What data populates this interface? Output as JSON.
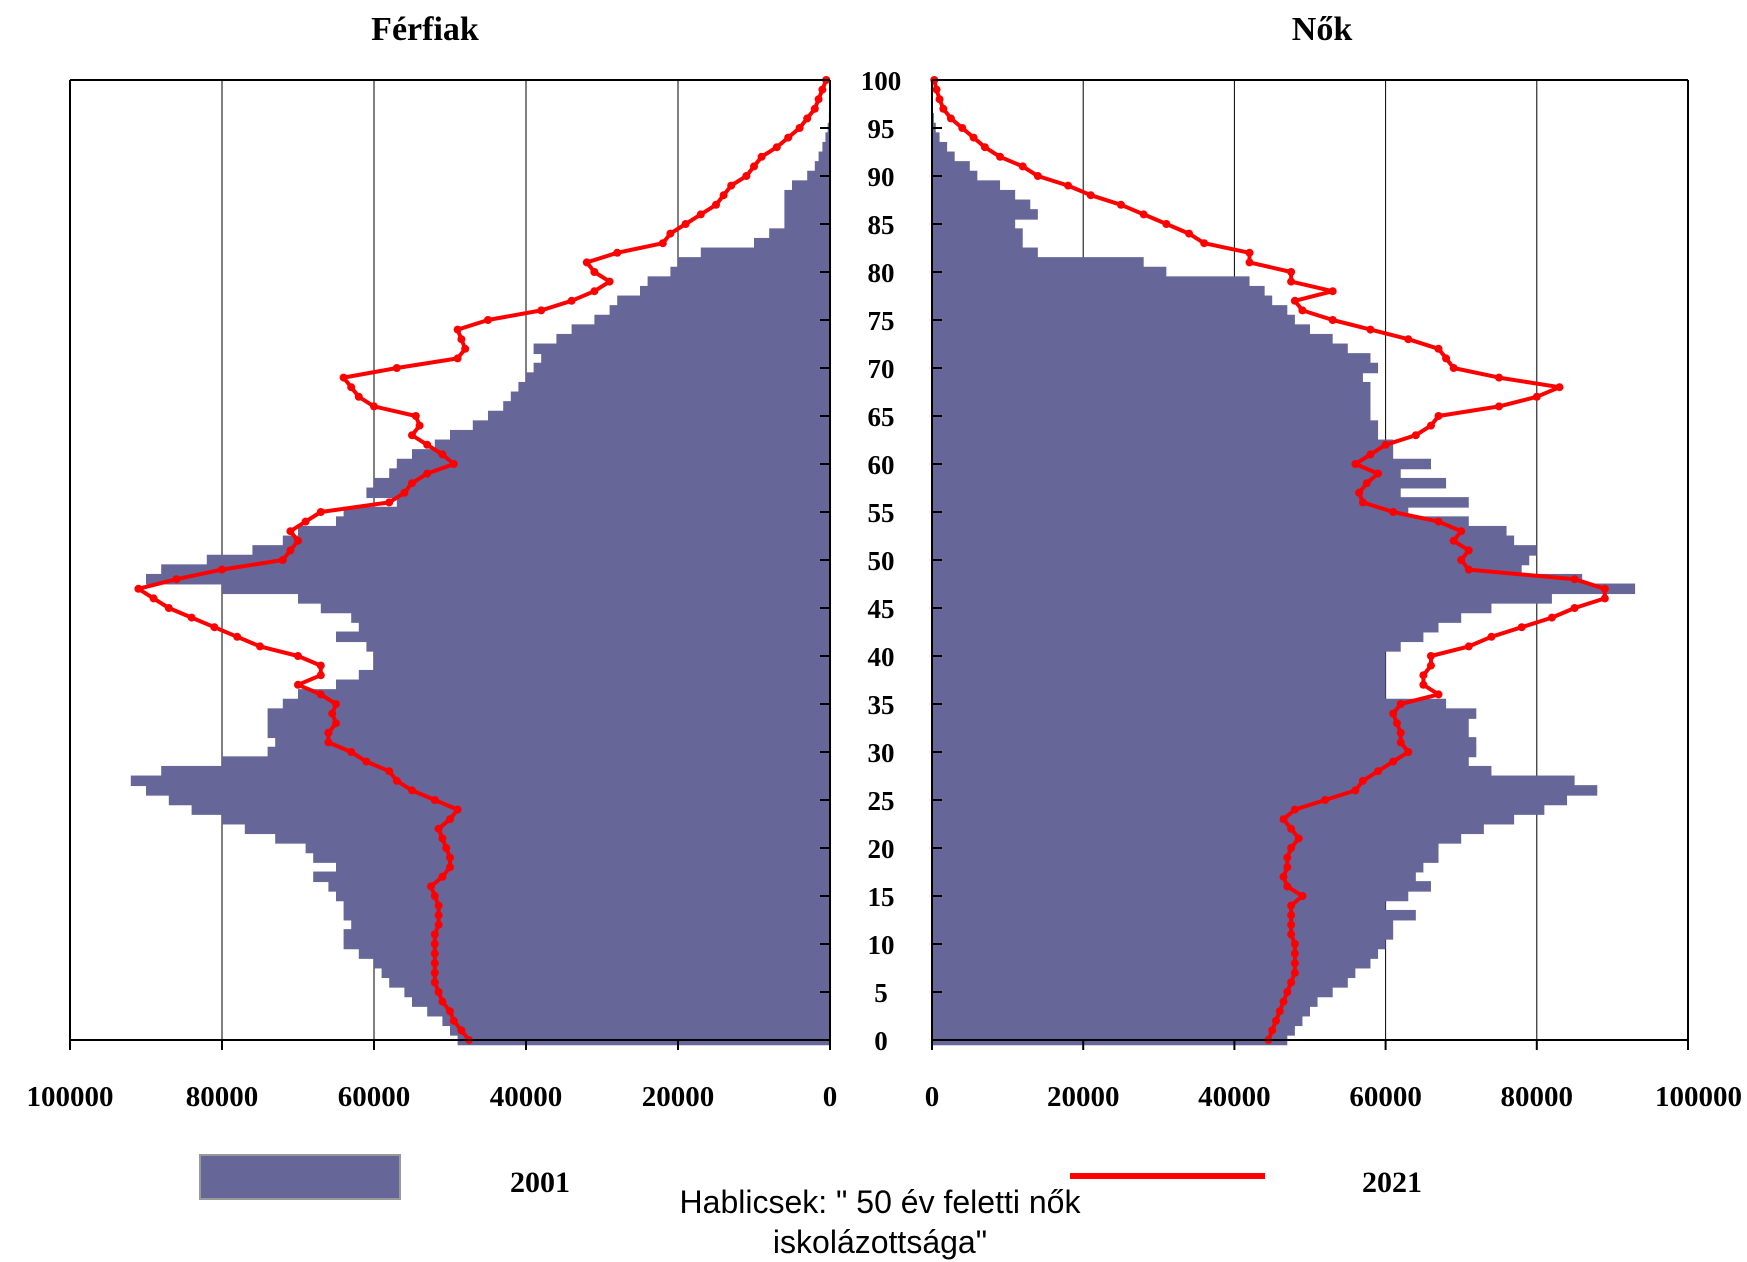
{
  "chart_data": {
    "type": "bar",
    "description_type": "population-pyramid",
    "panels": [
      {
        "title": "Férfiak",
        "side": "left",
        "xlim": [
          100000,
          0
        ]
      },
      {
        "title": "Nők",
        "side": "right",
        "xlim": [
          0,
          100000
        ]
      }
    ],
    "x_ticks_left": [
      "100000",
      "80000",
      "60000",
      "40000",
      "20000",
      "0"
    ],
    "x_ticks_right": [
      "0",
      "20000",
      "40000",
      "60000",
      "80000",
      "100000"
    ],
    "y_ticks": [
      "0",
      "5",
      "10",
      "15",
      "20",
      "25",
      "30",
      "35",
      "40",
      "45",
      "50",
      "55",
      "60",
      "65",
      "70",
      "75",
      "80",
      "85",
      "90",
      "95",
      "100"
    ],
    "ylim": [
      0,
      100
    ],
    "grid": true,
    "legend": {
      "placement": "bottom",
      "entries": [
        {
          "label": "2001",
          "style": "bar",
          "color": "#666699"
        },
        {
          "label": "2021",
          "style": "line",
          "color": "#ff0000"
        }
      ]
    },
    "source_note": "Hablicsek: \" 50 év feletti nők iskolázottsága\"",
    "ages": [
      0,
      1,
      2,
      3,
      4,
      5,
      6,
      7,
      8,
      9,
      10,
      11,
      12,
      13,
      14,
      15,
      16,
      17,
      18,
      19,
      20,
      21,
      22,
      23,
      24,
      25,
      26,
      27,
      28,
      29,
      30,
      31,
      32,
      33,
      34,
      35,
      36,
      37,
      38,
      39,
      40,
      41,
      42,
      43,
      44,
      45,
      46,
      47,
      48,
      49,
      50,
      51,
      52,
      53,
      54,
      55,
      56,
      57,
      58,
      59,
      60,
      61,
      62,
      63,
      64,
      65,
      66,
      67,
      68,
      69,
      70,
      71,
      72,
      73,
      74,
      75,
      76,
      77,
      78,
      79,
      80,
      81,
      82,
      83,
      84,
      85,
      86,
      87,
      88,
      89,
      90,
      91,
      92,
      93,
      94,
      95,
      96,
      97,
      98,
      99,
      100
    ],
    "series": [
      {
        "name": "2001",
        "sex": "Férfiak",
        "kind": "bar",
        "color": "#666699",
        "values": [
          49000,
          50000,
          51000,
          53000,
          55000,
          56000,
          58000,
          59000,
          60000,
          62000,
          64000,
          64000,
          63000,
          64000,
          64000,
          65000,
          66000,
          68000,
          65000,
          68000,
          69000,
          73000,
          77000,
          80000,
          84000,
          87000,
          90000,
          92000,
          88000,
          80000,
          74000,
          73000,
          74000,
          74000,
          74000,
          72000,
          70000,
          65000,
          62000,
          60000,
          60000,
          61000,
          65000,
          62000,
          63000,
          67000,
          70000,
          80000,
          90000,
          88000,
          82000,
          76000,
          72000,
          70000,
          65000,
          64000,
          57000,
          61000,
          60000,
          58000,
          57000,
          55000,
          52000,
          50000,
          47000,
          45000,
          43000,
          42000,
          41000,
          40000,
          39000,
          38000,
          39000,
          36000,
          34000,
          31000,
          29000,
          28000,
          25000,
          24000,
          21000,
          20000,
          17000,
          10000,
          8000,
          6000,
          6000,
          6000,
          6000,
          5000,
          3000,
          2000,
          1500,
          1000,
          600,
          300,
          150,
          80,
          40,
          20,
          10
        ]
      },
      {
        "name": "2001",
        "sex": "Nők",
        "kind": "bar",
        "color": "#666699",
        "values": [
          47000,
          48000,
          49000,
          50000,
          51000,
          53000,
          55000,
          56000,
          58000,
          59000,
          60000,
          61000,
          61000,
          64000,
          60000,
          63000,
          66000,
          64000,
          65000,
          67000,
          67000,
          70000,
          73000,
          77000,
          81000,
          84000,
          88000,
          85000,
          74000,
          71000,
          72000,
          72000,
          71000,
          71000,
          72000,
          68000,
          60000,
          60000,
          60000,
          60000,
          60000,
          62000,
          65000,
          67000,
          70000,
          74000,
          82000,
          93000,
          86000,
          78000,
          79000,
          80000,
          77000,
          76000,
          71000,
          63000,
          71000,
          62000,
          68000,
          62000,
          66000,
          61000,
          61000,
          59000,
          59000,
          58000,
          58000,
          58000,
          58000,
          57000,
          59000,
          58000,
          55000,
          53000,
          50000,
          48000,
          47000,
          45000,
          44000,
          42000,
          31000,
          28000,
          14000,
          12000,
          12000,
          11000,
          14000,
          13000,
          11000,
          9000,
          6000,
          5000,
          3000,
          2000,
          1000,
          500,
          250,
          120,
          60,
          30,
          10
        ]
      },
      {
        "name": "2021",
        "sex": "Férfiak",
        "kind": "line",
        "color": "#ff0000",
        "values": [
          47500,
          48500,
          49500,
          50000,
          51000,
          51500,
          52000,
          52000,
          52000,
          52000,
          52000,
          52000,
          51500,
          51500,
          51500,
          52000,
          52500,
          51000,
          50000,
          50000,
          50500,
          51000,
          51500,
          50000,
          49000,
          52000,
          55000,
          57000,
          58000,
          61000,
          63000,
          66000,
          66000,
          65000,
          65500,
          65000,
          67000,
          70000,
          67000,
          67000,
          70000,
          75000,
          78000,
          81000,
          84000,
          87000,
          89000,
          91000,
          86000,
          80000,
          72000,
          71000,
          70000,
          71000,
          69000,
          67000,
          58000,
          56000,
          55000,
          53000,
          49500,
          51000,
          53000,
          55000,
          54000,
          54500,
          60000,
          62000,
          63000,
          64000,
          57000,
          49000,
          48000,
          48500,
          49000,
          45000,
          38000,
          34000,
          31000,
          29000,
          31000,
          32000,
          28000,
          22000,
          21000,
          19000,
          17000,
          15000,
          14000,
          13000,
          11000,
          10000,
          9000,
          7000,
          5500,
          4000,
          3000,
          2000,
          1500,
          1000,
          500
        ]
      },
      {
        "name": "2021",
        "sex": "Nők",
        "kind": "line",
        "color": "#ff0000",
        "values": [
          44500,
          45000,
          45500,
          46000,
          46500,
          47000,
          47500,
          48000,
          48000,
          48000,
          48000,
          47500,
          47500,
          47500,
          47500,
          49000,
          47000,
          46500,
          47000,
          47000,
          47500,
          48500,
          47500,
          46500,
          48000,
          52000,
          56000,
          57000,
          59000,
          61000,
          63000,
          62000,
          62000,
          61500,
          61000,
          62000,
          67000,
          65000,
          65000,
          66000,
          66000,
          71000,
          74000,
          78000,
          82000,
          85000,
          89000,
          89000,
          85000,
          71000,
          70000,
          71000,
          69000,
          70000,
          67000,
          61000,
          57000,
          56500,
          57500,
          59000,
          56000,
          58000,
          60000,
          64000,
          66000,
          67000,
          75000,
          80000,
          83000,
          75000,
          69000,
          68000,
          67000,
          63000,
          58000,
          53000,
          49000,
          48000,
          53000,
          47500,
          47500,
          42000,
          42000,
          36000,
          34000,
          31000,
          28000,
          25000,
          21000,
          18000,
          14000,
          12000,
          9000,
          7000,
          5500,
          4000,
          2500,
          1500,
          1000,
          600,
          300
        ]
      }
    ]
  }
}
